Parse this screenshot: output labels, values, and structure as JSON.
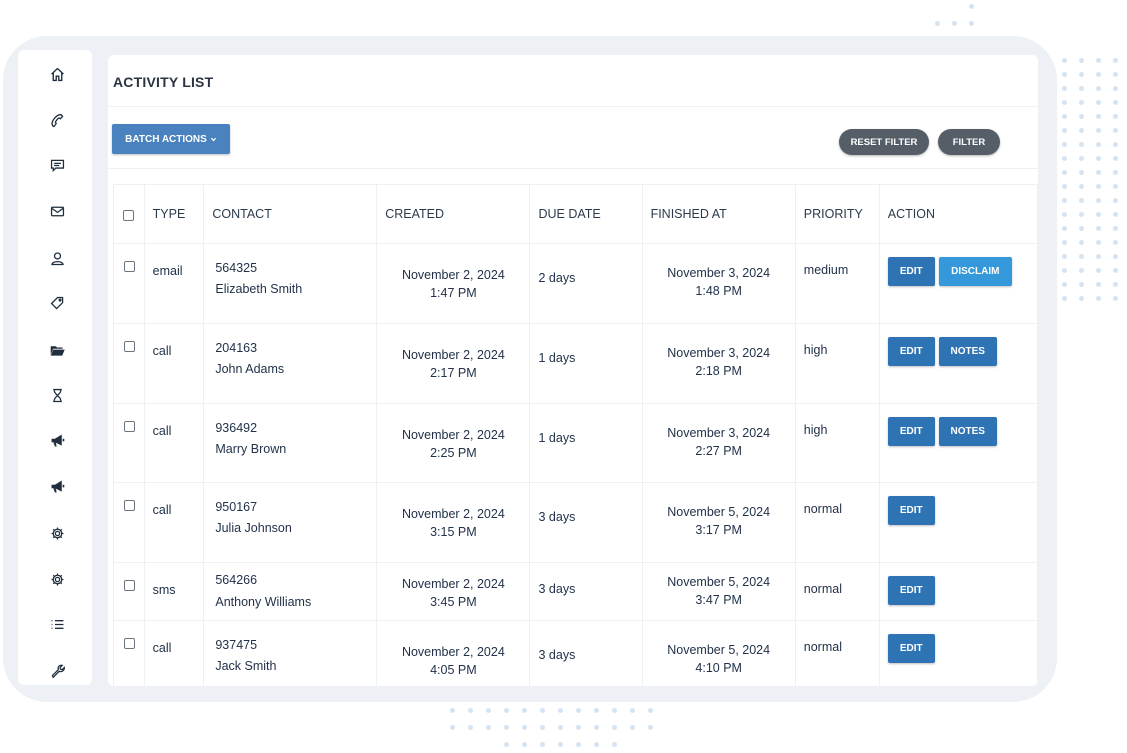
{
  "page": {
    "title": "ACTIVITY LIST"
  },
  "toolbar": {
    "batch_actions": "BATCH ACTIONS",
    "reset_filter": "RESET FILTER",
    "filter": "FILTER"
  },
  "sidebar": {
    "icons": [
      "home-icon",
      "phone-icon",
      "chat-icon",
      "mail-icon",
      "user-icon",
      "tag-icon",
      "folder-icon",
      "hourglass-icon",
      "megaphone-icon",
      "megaphone-icon",
      "gear-icon",
      "gear-icon",
      "list-icon",
      "wrench-icon"
    ]
  },
  "table": {
    "headers": {
      "type": "TYPE",
      "contact": "CONTACT",
      "created": "CREATED",
      "due_date": "DUE DATE",
      "finished_at": "FINISHED AT",
      "priority": "PRIORITY",
      "action": "ACTION"
    },
    "rows": [
      {
        "type": "email",
        "contact_id": "564325",
        "contact_name": "Elizabeth Smith",
        "created_date": "November 2, 2024",
        "created_time": "1:47 PM",
        "due": "2 days",
        "finished_date": "November 3, 2024",
        "finished_time": "1:48 PM",
        "priority": "medium",
        "actions": [
          "EDIT",
          "DISCLAIM"
        ]
      },
      {
        "type": "call",
        "contact_id": "204163",
        "contact_name": "John Adams",
        "created_date": "November 2, 2024",
        "created_time": "2:17 PM",
        "due": "1 days",
        "finished_date": "November 3, 2024",
        "finished_time": "2:18 PM",
        "priority": "high",
        "actions": [
          "EDIT",
          "NOTES"
        ]
      },
      {
        "type": "call",
        "contact_id": "936492",
        "contact_name": "Marry Brown",
        "created_date": "November 2, 2024",
        "created_time": "2:25 PM",
        "due": "1 days",
        "finished_date": "November 3, 2024",
        "finished_time": "2:27 PM",
        "priority": "high",
        "actions": [
          "EDIT",
          "NOTES"
        ]
      },
      {
        "type": "call",
        "contact_id": "950167",
        "contact_name": "Julia Johnson",
        "created_date": "November 2, 2024",
        "created_time": "3:15 PM",
        "due": "3 days",
        "finished_date": "November 5, 2024",
        "finished_time": "3:17 PM",
        "priority": "normal",
        "actions": [
          "EDIT"
        ]
      },
      {
        "type": "sms",
        "contact_id": "564266",
        "contact_name": "Anthony Williams",
        "created_date": "November 2, 2024",
        "created_time": "3:45 PM",
        "due": "3 days",
        "finished_date": "November 5, 2024",
        "finished_time": "3:47 PM",
        "priority": "normal",
        "actions": [
          "EDIT"
        ]
      },
      {
        "type": "call",
        "contact_id": "937475",
        "contact_name": "Jack Smith",
        "created_date": "November 2, 2024",
        "created_time": "4:05 PM",
        "due": "3 days",
        "finished_date": "November 5, 2024",
        "finished_time": "4:10 PM",
        "priority": "normal",
        "actions": [
          "EDIT"
        ]
      }
    ]
  },
  "colors": {
    "edit": "#2e74b5",
    "disclaim": "#3498db",
    "batch": "#4a82bf",
    "pill": "#555d66",
    "frame": "#edf1f5"
  }
}
